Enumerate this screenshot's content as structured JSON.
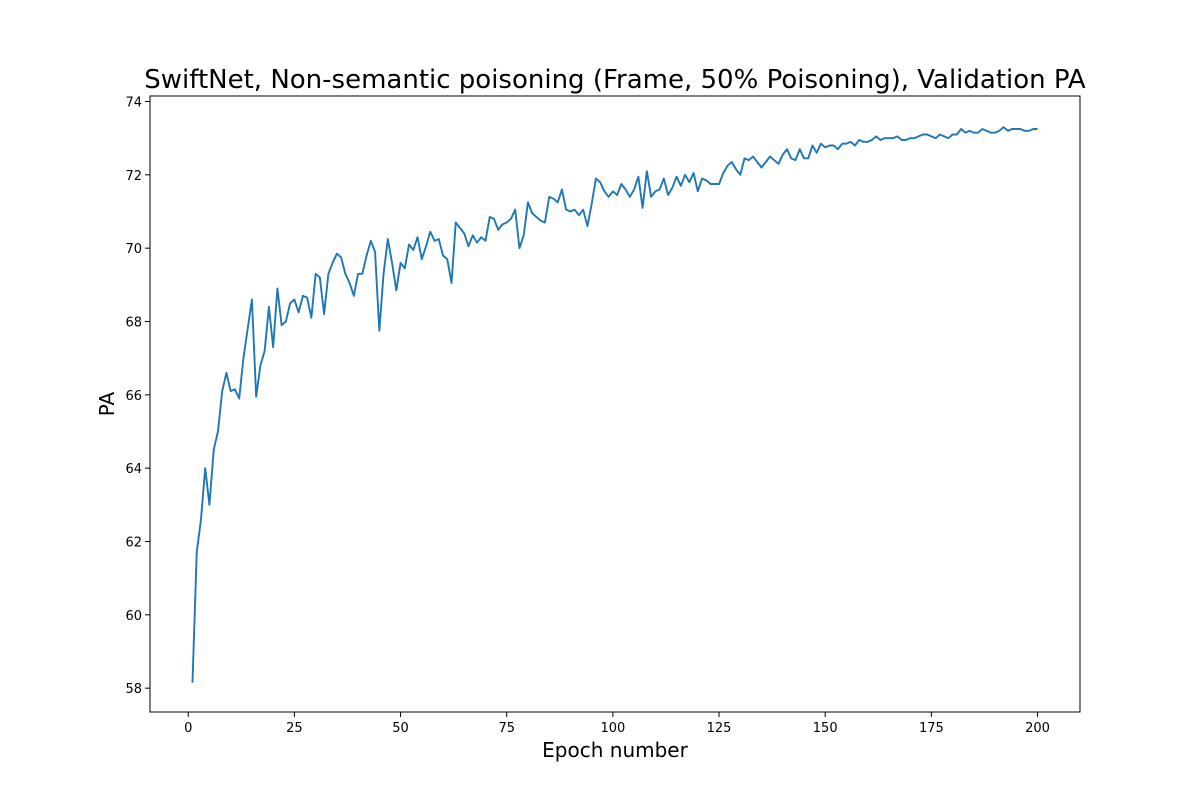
{
  "chart_data": {
    "type": "line",
    "title": "SwiftNet, Non-semantic poisoning (Frame, 50% Poisoning), Validation PA",
    "xlabel": "Epoch number",
    "ylabel": "PA",
    "xlim": [
      -9,
      210
    ],
    "ylim": [
      57.35,
      74.15
    ],
    "xticks": [
      0,
      25,
      50,
      75,
      100,
      125,
      150,
      175,
      200
    ],
    "yticks": [
      58,
      60,
      62,
      64,
      66,
      68,
      70,
      72,
      74
    ],
    "grid": false,
    "line_color": "#1f77b4",
    "series": [
      {
        "x": [
          1,
          2,
          3,
          4,
          5,
          6,
          7,
          8,
          9,
          10,
          11,
          12,
          13,
          14,
          15,
          16,
          17,
          18,
          19,
          20,
          21,
          22,
          23,
          24,
          25,
          26,
          27,
          28,
          29,
          30,
          31,
          32,
          33,
          34,
          35,
          36,
          37,
          38,
          39,
          40,
          41,
          42,
          43,
          44,
          45,
          46,
          47,
          48,
          49,
          50,
          51,
          52,
          53,
          54,
          55,
          56,
          57,
          58,
          59,
          60,
          61,
          62,
          63,
          64,
          65,
          66,
          67,
          68,
          69,
          70,
          71,
          72,
          73,
          74,
          75,
          76,
          77,
          78,
          79,
          80,
          81,
          82,
          83,
          84,
          85,
          86,
          87,
          88,
          89,
          90,
          91,
          92,
          93,
          94,
          95,
          96,
          97,
          98,
          99,
          100,
          101,
          102,
          103,
          104,
          105,
          106,
          107,
          108,
          109,
          110,
          111,
          112,
          113,
          114,
          115,
          116,
          117,
          118,
          119,
          120,
          121,
          122,
          123,
          124,
          125,
          126,
          127,
          128,
          129,
          130,
          131,
          132,
          133,
          134,
          135,
          136,
          137,
          138,
          139,
          140,
          141,
          142,
          143,
          144,
          145,
          146,
          147,
          148,
          149,
          150,
          151,
          152,
          153,
          154,
          155,
          156,
          157,
          158,
          159,
          160,
          161,
          162,
          163,
          164,
          165,
          166,
          167,
          168,
          169,
          170,
          171,
          172,
          173,
          174,
          175,
          176,
          177,
          178,
          179,
          180,
          181,
          182,
          183,
          184,
          185,
          186,
          187,
          188,
          189,
          190,
          191,
          192,
          193,
          194,
          195,
          196,
          197,
          198,
          199,
          200
        ],
        "values": [
          58.15,
          61.7,
          62.6,
          64.0,
          63.0,
          64.5,
          65.0,
          66.1,
          66.6,
          66.1,
          66.15,
          65.9,
          67.0,
          67.8,
          68.6,
          65.95,
          66.8,
          67.2,
          68.4,
          67.3,
          68.9,
          67.9,
          68.0,
          68.5,
          68.6,
          68.25,
          68.7,
          68.65,
          68.1,
          69.3,
          69.2,
          68.2,
          69.3,
          69.6,
          69.85,
          69.75,
          69.3,
          69.05,
          68.7,
          69.3,
          69.3,
          69.8,
          70.2,
          69.9,
          67.75,
          69.3,
          70.25,
          69.6,
          68.85,
          69.6,
          69.45,
          70.1,
          69.95,
          70.3,
          69.7,
          70.05,
          70.45,
          70.2,
          70.25,
          69.8,
          69.7,
          69.05,
          70.7,
          70.55,
          70.4,
          70.05,
          70.35,
          70.15,
          70.3,
          70.2,
          70.85,
          70.8,
          70.5,
          70.65,
          70.7,
          70.8,
          71.05,
          70.0,
          70.35,
          71.25,
          70.95,
          70.85,
          70.75,
          70.7,
          71.4,
          71.35,
          71.25,
          71.6,
          71.05,
          71.0,
          71.05,
          70.9,
          71.05,
          70.6,
          71.2,
          71.9,
          71.8,
          71.55,
          71.4,
          71.55,
          71.45,
          71.75,
          71.6,
          71.4,
          71.6,
          71.95,
          71.1,
          72.1,
          71.4,
          71.55,
          71.6,
          71.9,
          71.45,
          71.65,
          71.95,
          71.7,
          72.0,
          71.8,
          72.05,
          71.55,
          71.9,
          71.85,
          71.75,
          71.75,
          71.75,
          72.05,
          72.25,
          72.35,
          72.15,
          72.0,
          72.45,
          72.4,
          72.5,
          72.35,
          72.2,
          72.35,
          72.5,
          72.4,
          72.3,
          72.55,
          72.7,
          72.45,
          72.4,
          72.7,
          72.45,
          72.45,
          72.8,
          72.6,
          72.85,
          72.75,
          72.8,
          72.8,
          72.7,
          72.85,
          72.85,
          72.9,
          72.8,
          72.95,
          72.9,
          72.9,
          72.95,
          73.05,
          72.95,
          73.0,
          73.0,
          73.0,
          73.05,
          72.95,
          72.95,
          73.0,
          73.0,
          73.05,
          73.1,
          73.1,
          73.05,
          73.0,
          73.1,
          73.05,
          73.0,
          73.1,
          73.1,
          73.25,
          73.15,
          73.2,
          73.15,
          73.15,
          73.25,
          73.2,
          73.15,
          73.15,
          73.2,
          73.3,
          73.2,
          73.25,
          73.25,
          73.25,
          73.2,
          73.2,
          73.25,
          73.25
        ]
      }
    ]
  }
}
